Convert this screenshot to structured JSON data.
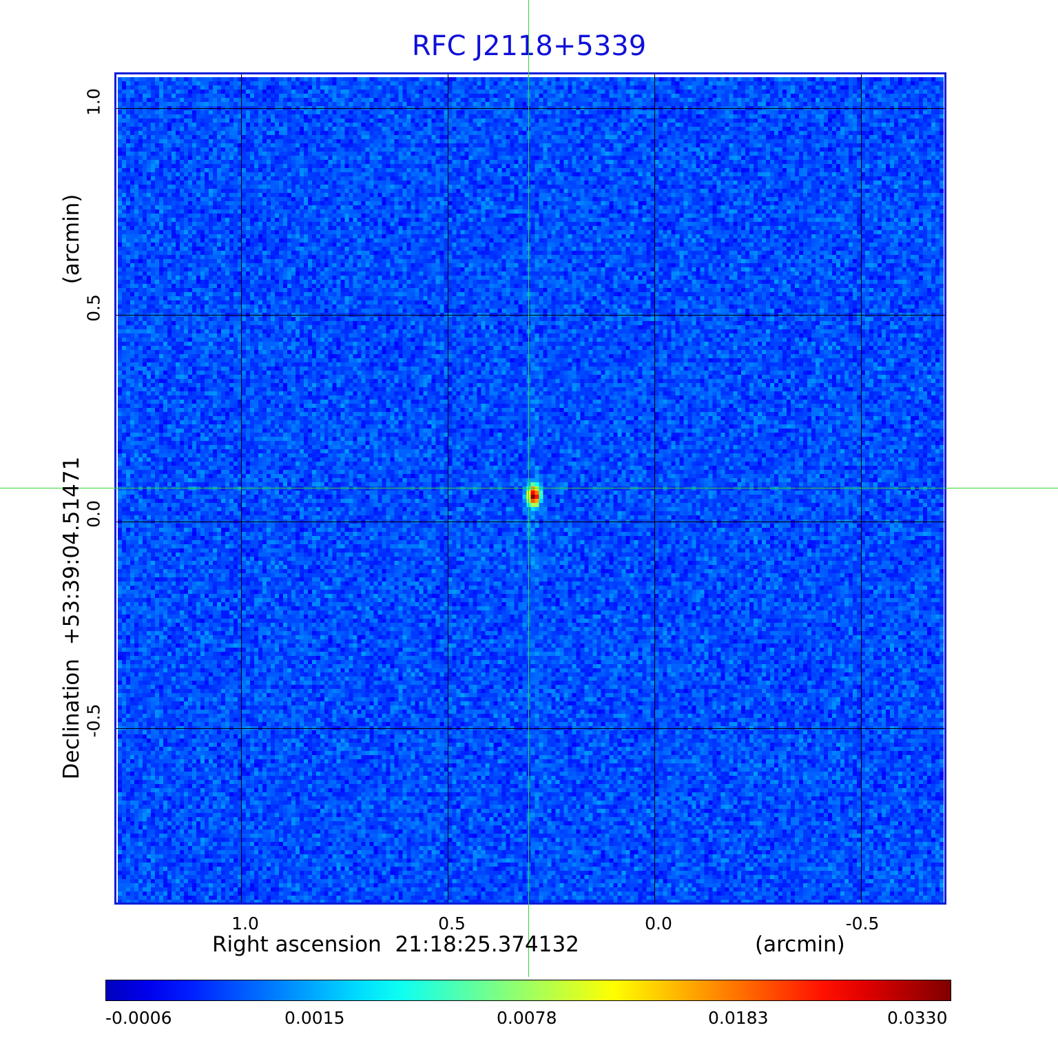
{
  "title": "RFC J2118+5339",
  "x_axis": {
    "label": "Right ascension  21:18:25.374132",
    "unit": "(arcmin)",
    "ticks": [
      "1.0",
      "0.5",
      "0.0",
      "-0.5"
    ]
  },
  "y_axis": {
    "label": "Declination  +53:39:04.51471",
    "unit": "(arcmin)",
    "ticks": [
      "1.0",
      "0.5",
      "0.0",
      "-0.5"
    ]
  },
  "colorbar": {
    "ticks": [
      "-0.0006",
      "0.0015",
      "0.0078",
      "0.0183",
      "0.0330"
    ],
    "colormap": "jet"
  },
  "colors": {
    "title": "#1010d8",
    "frame": "#0b1cd8",
    "crosshair": "#33d633",
    "background_noise": "#1a3df0",
    "source_peak": "#d40000"
  }
}
